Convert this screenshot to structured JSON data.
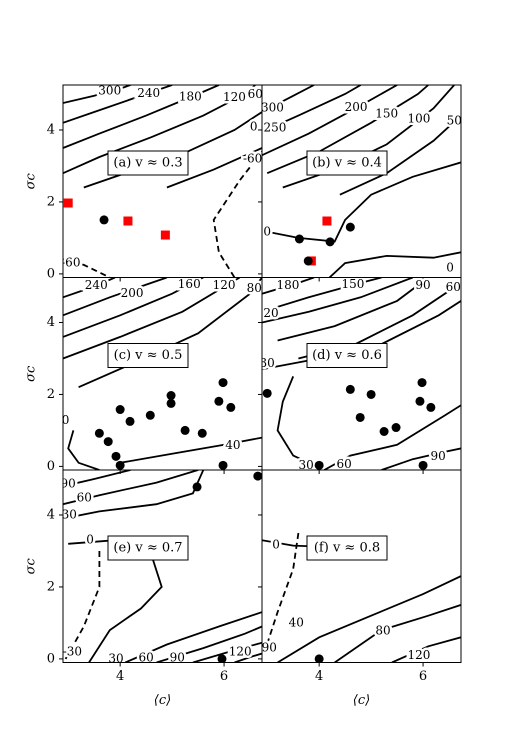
{
  "chart_data": [
    {
      "type": "scatter",
      "title": "(a) v ≈ 0.3",
      "ylabel": "σc",
      "xlim": [
        2.9,
        6.73
      ],
      "ylim": [
        -0.1,
        5.25
      ],
      "xticks": [
        4,
        6
      ],
      "yticks": [
        0,
        2,
        4
      ],
      "series": [
        {
          "marker": "square",
          "color": "#ff0000",
          "x": [
            3.0,
            4.15,
            4.87
          ],
          "y": [
            1.97,
            1.47,
            1.08
          ]
        },
        {
          "marker": "circle",
          "color": "#000000",
          "x": [
            3.69
          ],
          "y": [
            1.5
          ]
        }
      ],
      "contours": [
        300,
        240,
        180,
        120,
        60,
        0,
        -60,
        -60
      ]
    },
    {
      "type": "scatter",
      "title": "(b) v ≈ 0.4",
      "xlim": [
        2.9,
        6.73
      ],
      "ylim": [
        -0.1,
        5.25
      ],
      "xticks": [
        4,
        6
      ],
      "yticks": [
        0,
        2,
        4
      ],
      "series": [
        {
          "marker": "square",
          "color": "#ff0000",
          "x": [
            4.15,
            3.85
          ],
          "y": [
            1.47,
            0.36
          ]
        },
        {
          "marker": "circle",
          "color": "#000000",
          "x": [
            3.62,
            4.21,
            4.6,
            3.79
          ],
          "y": [
            0.97,
            0.89,
            1.3,
            0.36
          ]
        }
      ],
      "contours": [
        300,
        250,
        200,
        150,
        100,
        50,
        0,
        0
      ]
    },
    {
      "type": "scatter",
      "title": "(c) v ≈ 0.5",
      "ylabel": "σc",
      "xlim": [
        2.9,
        6.73
      ],
      "ylim": [
        -0.1,
        5.25
      ],
      "xticks": [
        4,
        6
      ],
      "yticks": [
        0,
        2,
        4
      ],
      "series": [
        {
          "marker": "circle",
          "color": "#000000",
          "x": [
            3.6,
            3.77,
            4.0,
            4.19,
            4.58,
            4.98,
            4.98,
            5.25,
            5.58,
            5.9,
            5.98,
            6.13,
            3.92,
            4.0,
            5.98
          ],
          "y": [
            0.92,
            0.69,
            1.58,
            1.25,
            1.42,
            1.97,
            1.75,
            1.0,
            0.92,
            1.81,
            2.33,
            1.64,
            0.28,
            0.03,
            0.03
          ]
        }
      ],
      "contours": [
        240,
        200,
        160,
        120,
        80,
        0,
        40
      ]
    },
    {
      "type": "scatter",
      "title": "(d) v ≈ 0.6",
      "xlim": [
        2.9,
        6.73
      ],
      "ylim": [
        -0.1,
        5.25
      ],
      "xticks": [
        4,
        6
      ],
      "yticks": [
        0,
        2,
        4
      ],
      "series": [
        {
          "marker": "circle",
          "color": "#000000",
          "x": [
            3.0,
            4.0,
            4.6,
            4.79,
            5.0,
            5.25,
            5.48,
            5.98,
            5.94,
            6.15,
            6.0
          ],
          "y": [
            2.03,
            0.03,
            2.14,
            1.36,
            2.0,
            0.97,
            1.08,
            2.33,
            1.81,
            1.64,
            0.03
          ]
        }
      ],
      "contours": [
        180,
        150,
        90,
        60,
        120,
        30,
        30,
        60,
        90
      ]
    },
    {
      "type": "scatter",
      "title": "(e) v ≈ 0.7",
      "xlabel": "⟨c⟩",
      "ylabel": "σc",
      "xlim": [
        2.9,
        6.73
      ],
      "ylim": [
        -0.1,
        5.25
      ],
      "xticks": [
        4,
        6
      ],
      "yticks": [
        0,
        2,
        4
      ],
      "series": [
        {
          "marker": "circle",
          "color": "#000000",
          "x": [
            5.48,
            6.65,
            5.96
          ],
          "y": [
            4.78,
            5.08,
            0.0
          ]
        }
      ],
      "contours": [
        90,
        60,
        30,
        0,
        -30,
        30,
        60,
        90,
        120
      ]
    },
    {
      "type": "scatter",
      "title": "(f) v ≈ 0.8",
      "xlabel": "⟨c⟩",
      "xlim": [
        2.9,
        6.73
      ],
      "ylim": [
        -0.1,
        5.25
      ],
      "xticks": [
        4,
        6
      ],
      "yticks": [
        0,
        2,
        4
      ],
      "series": [
        {
          "marker": "circle",
          "color": "#000000",
          "x": [
            4.0
          ],
          "y": [
            0.0
          ]
        }
      ],
      "contours": [
        0,
        -90,
        40,
        80,
        120
      ]
    }
  ]
}
